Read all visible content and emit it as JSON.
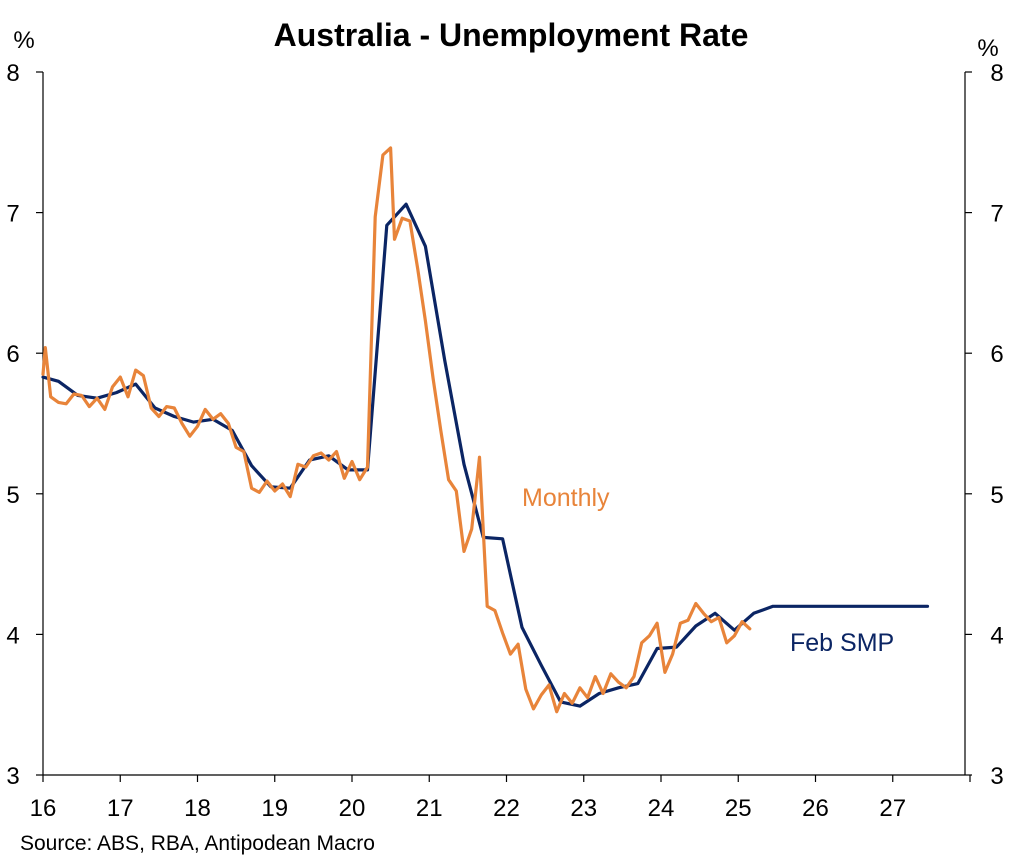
{
  "chart_data": {
    "type": "line",
    "title": "Australia - Unemployment Rate",
    "y_unit_left": "%",
    "y_unit_right": "%",
    "ylim": [
      3,
      8
    ],
    "y_ticks": [
      "3",
      "4",
      "5",
      "6",
      "7",
      "8"
    ],
    "xlim": [
      2016,
      2028
    ],
    "x_ticks": [
      "16",
      "17",
      "18",
      "19",
      "20",
      "21",
      "22",
      "23",
      "24",
      "25",
      "26",
      "27"
    ],
    "grid": false,
    "source": "Source: ABS, RBA, Antipodean Macro",
    "colors": {
      "feb_smp": "#0B2564",
      "monthly": "#E8843A"
    },
    "series": [
      {
        "name": "Feb SMP",
        "label": "Feb SMP",
        "color": "#0B2564",
        "x": [
          2016.0,
          2016.2,
          2016.45,
          2016.7,
          2016.95,
          2017.2,
          2017.45,
          2017.7,
          2017.95,
          2018.2,
          2018.45,
          2018.7,
          2018.95,
          2019.2,
          2019.45,
          2019.7,
          2019.95,
          2020.2,
          2020.45,
          2020.7,
          2020.95,
          2021.2,
          2021.45,
          2021.7,
          2021.95,
          2022.2,
          2022.45,
          2022.7,
          2022.95,
          2023.2,
          2023.45,
          2023.7,
          2023.95,
          2024.2,
          2024.45,
          2024.7,
          2024.95,
          2025.2,
          2025.45,
          2025.7,
          2025.95,
          2026.2,
          2026.45,
          2026.7,
          2026.95,
          2027.2,
          2027.45
        ],
        "values": [
          5.83,
          5.8,
          5.7,
          5.68,
          5.72,
          5.78,
          5.61,
          5.55,
          5.51,
          5.53,
          5.45,
          5.2,
          5.05,
          5.04,
          5.24,
          5.27,
          5.17,
          5.17,
          6.91,
          7.06,
          6.76,
          5.95,
          5.21,
          4.69,
          4.68,
          4.05,
          3.78,
          3.52,
          3.49,
          3.58,
          3.62,
          3.65,
          3.9,
          3.91,
          4.06,
          4.15,
          4.03,
          4.15,
          4.2,
          4.2,
          4.2,
          4.2,
          4.2,
          4.2,
          4.2,
          4.2,
          4.2
        ]
      },
      {
        "name": "Monthly",
        "label": "Monthly",
        "color": "#E8843A",
        "x": [
          2016.0,
          2016.03,
          2016.1,
          2016.2,
          2016.3,
          2016.4,
          2016.5,
          2016.6,
          2016.7,
          2016.8,
          2016.9,
          2017.0,
          2017.1,
          2017.2,
          2017.3,
          2017.4,
          2017.5,
          2017.6,
          2017.7,
          2017.8,
          2017.9,
          2018.0,
          2018.1,
          2018.2,
          2018.3,
          2018.4,
          2018.5,
          2018.6,
          2018.7,
          2018.8,
          2018.9,
          2019.0,
          2019.1,
          2019.2,
          2019.3,
          2019.4,
          2019.5,
          2019.6,
          2019.7,
          2019.8,
          2019.9,
          2020.0,
          2020.1,
          2020.2,
          2020.3,
          2020.4,
          2020.5,
          2020.55,
          2020.65,
          2020.75,
          2020.85,
          2020.95,
          2021.05,
          2021.15,
          2021.25,
          2021.35,
          2021.45,
          2021.55,
          2021.65,
          2021.75,
          2021.85,
          2021.95,
          2022.05,
          2022.15,
          2022.25,
          2022.35,
          2022.45,
          2022.55,
          2022.65,
          2022.75,
          2022.85,
          2022.95,
          2023.05,
          2023.15,
          2023.25,
          2023.35,
          2023.45,
          2023.55,
          2023.65,
          2023.75,
          2023.85,
          2023.95,
          2024.05,
          2024.15,
          2024.25,
          2024.35,
          2024.45,
          2024.55,
          2024.65,
          2024.75,
          2024.85,
          2024.95,
          2025.05,
          2025.15
        ],
        "values": [
          5.85,
          6.04,
          5.69,
          5.65,
          5.64,
          5.71,
          5.7,
          5.62,
          5.68,
          5.6,
          5.76,
          5.83,
          5.69,
          5.88,
          5.84,
          5.61,
          5.55,
          5.62,
          5.61,
          5.5,
          5.41,
          5.48,
          5.6,
          5.53,
          5.57,
          5.5,
          5.33,
          5.3,
          5.04,
          5.01,
          5.09,
          5.02,
          5.07,
          4.98,
          5.21,
          5.19,
          5.27,
          5.29,
          5.24,
          5.3,
          5.11,
          5.23,
          5.1,
          5.19,
          6.97,
          7.41,
          7.46,
          6.81,
          6.96,
          6.94,
          6.6,
          6.23,
          5.82,
          5.45,
          5.1,
          5.02,
          4.59,
          4.75,
          5.26,
          4.2,
          4.17,
          4.01,
          3.86,
          3.93,
          3.61,
          3.47,
          3.57,
          3.64,
          3.45,
          3.58,
          3.51,
          3.62,
          3.55,
          3.7,
          3.58,
          3.72,
          3.66,
          3.62,
          3.7,
          3.94,
          3.99,
          4.08,
          3.73,
          3.86,
          4.08,
          4.1,
          4.22,
          4.15,
          4.09,
          4.12,
          3.94,
          3.99,
          4.09,
          4.04
        ]
      }
    ]
  }
}
